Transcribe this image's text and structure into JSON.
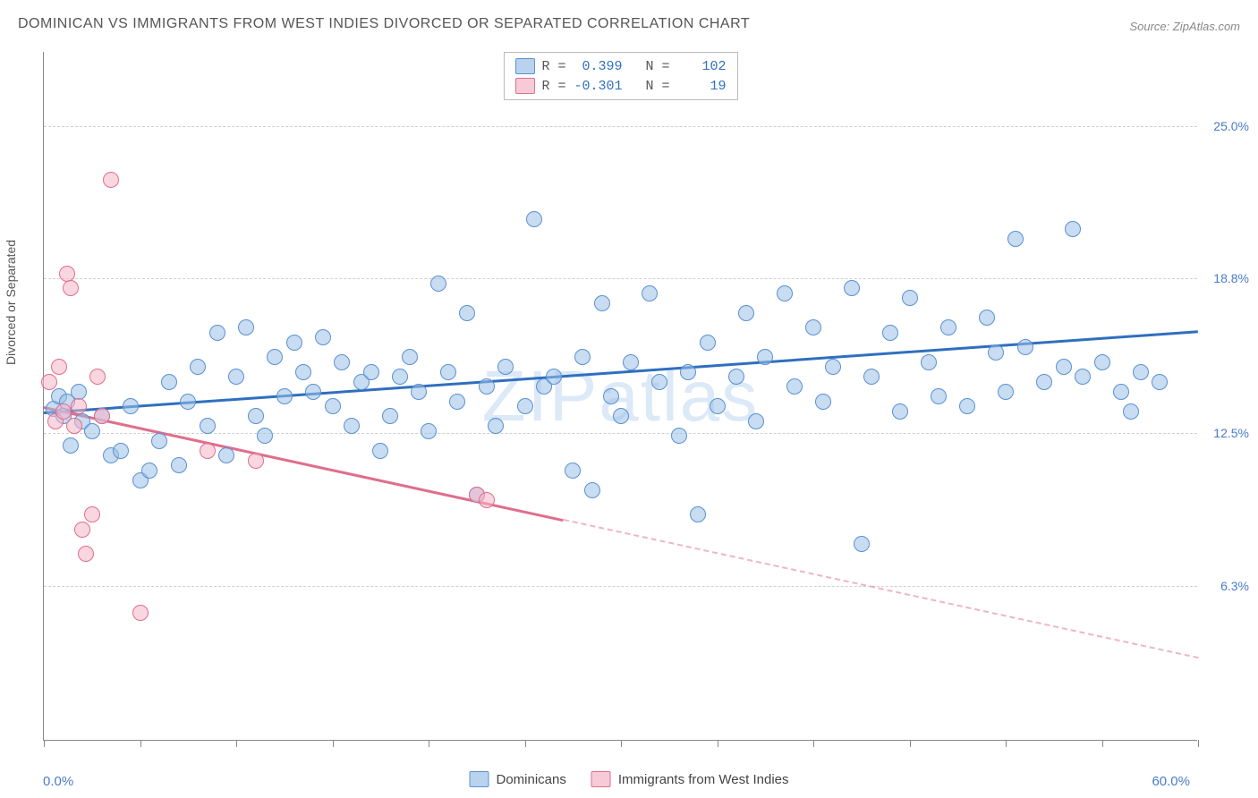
{
  "title": "DOMINICAN VS IMMIGRANTS FROM WEST INDIES DIVORCED OR SEPARATED CORRELATION CHART",
  "source": "Source: ZipAtlas.com",
  "watermark": "ZIPatlas",
  "ylabel": "Divorced or Separated",
  "chart": {
    "type": "scatter",
    "background_color": "#ffffff",
    "grid_color": "#d0d0d0",
    "xlim": [
      0,
      60
    ],
    "ylim": [
      0,
      28
    ],
    "x_axis_labels": {
      "left": "0.0%",
      "right": "60.0%"
    },
    "x_ticks": [
      0,
      5,
      10,
      15,
      20,
      25,
      30,
      35,
      40,
      45,
      50,
      55,
      60
    ],
    "y_gridlines": [
      {
        "value": 6.3,
        "label": "6.3%"
      },
      {
        "value": 12.5,
        "label": "12.5%"
      },
      {
        "value": 18.8,
        "label": "18.8%"
      },
      {
        "value": 25.0,
        "label": "25.0%"
      }
    ],
    "marker_size": 18,
    "series": [
      {
        "name": "Dominicans",
        "color_fill": "rgba(155,192,232,0.55)",
        "color_stroke": "#5a91d1",
        "trend_color": "#2f6fc0",
        "trend": {
          "x1": 0,
          "y1": 13.4,
          "x2": 60,
          "y2": 16.7,
          "solid_until": 60
        },
        "R": "0.399",
        "N": "102",
        "points": [
          [
            0.5,
            13.5
          ],
          [
            0.8,
            14.0
          ],
          [
            1.0,
            13.2
          ],
          [
            1.2,
            13.8
          ],
          [
            1.4,
            12.0
          ],
          [
            1.8,
            14.2
          ],
          [
            2.0,
            13.0
          ],
          [
            2.5,
            12.6
          ],
          [
            3.0,
            13.2
          ],
          [
            3.5,
            11.6
          ],
          [
            4.0,
            11.8
          ],
          [
            4.5,
            13.6
          ],
          [
            5.0,
            10.6
          ],
          [
            5.5,
            11.0
          ],
          [
            6.0,
            12.2
          ],
          [
            6.5,
            14.6
          ],
          [
            7.0,
            11.2
          ],
          [
            7.5,
            13.8
          ],
          [
            8.0,
            15.2
          ],
          [
            8.5,
            12.8
          ],
          [
            9.0,
            16.6
          ],
          [
            9.5,
            11.6
          ],
          [
            10.0,
            14.8
          ],
          [
            10.5,
            16.8
          ],
          [
            11.0,
            13.2
          ],
          [
            11.5,
            12.4
          ],
          [
            12.0,
            15.6
          ],
          [
            12.5,
            14.0
          ],
          [
            13.0,
            16.2
          ],
          [
            13.5,
            15.0
          ],
          [
            14.0,
            14.2
          ],
          [
            14.5,
            16.4
          ],
          [
            15.0,
            13.6
          ],
          [
            15.5,
            15.4
          ],
          [
            16.0,
            12.8
          ],
          [
            16.5,
            14.6
          ],
          [
            17.0,
            15.0
          ],
          [
            17.5,
            11.8
          ],
          [
            18.0,
            13.2
          ],
          [
            18.5,
            14.8
          ],
          [
            19.0,
            15.6
          ],
          [
            19.5,
            14.2
          ],
          [
            20.0,
            12.6
          ],
          [
            20.5,
            18.6
          ],
          [
            21.0,
            15.0
          ],
          [
            21.5,
            13.8
          ],
          [
            22.0,
            17.4
          ],
          [
            22.5,
            10.0
          ],
          [
            23.0,
            14.4
          ],
          [
            23.5,
            12.8
          ],
          [
            24.0,
            15.2
          ],
          [
            25.0,
            13.6
          ],
          [
            25.5,
            21.2
          ],
          [
            26.0,
            14.4
          ],
          [
            26.5,
            14.8
          ],
          [
            27.5,
            11.0
          ],
          [
            28.0,
            15.6
          ],
          [
            28.5,
            10.2
          ],
          [
            29.0,
            17.8
          ],
          [
            29.5,
            14.0
          ],
          [
            30.0,
            13.2
          ],
          [
            30.5,
            15.4
          ],
          [
            31.5,
            18.2
          ],
          [
            32.0,
            14.6
          ],
          [
            33.0,
            12.4
          ],
          [
            33.5,
            15.0
          ],
          [
            34.0,
            9.2
          ],
          [
            34.5,
            16.2
          ],
          [
            35.0,
            13.6
          ],
          [
            36.0,
            14.8
          ],
          [
            36.5,
            17.4
          ],
          [
            37.0,
            13.0
          ],
          [
            37.5,
            15.6
          ],
          [
            38.5,
            18.2
          ],
          [
            39.0,
            14.4
          ],
          [
            40.0,
            16.8
          ],
          [
            40.5,
            13.8
          ],
          [
            41.0,
            15.2
          ],
          [
            42.0,
            18.4
          ],
          [
            42.5,
            8.0
          ],
          [
            43.0,
            14.8
          ],
          [
            44.0,
            16.6
          ],
          [
            44.5,
            13.4
          ],
          [
            45.0,
            18.0
          ],
          [
            46.0,
            15.4
          ],
          [
            46.5,
            14.0
          ],
          [
            47.0,
            16.8
          ],
          [
            48.0,
            13.6
          ],
          [
            49.0,
            17.2
          ],
          [
            49.5,
            15.8
          ],
          [
            50.0,
            14.2
          ],
          [
            50.5,
            20.4
          ],
          [
            51.0,
            16.0
          ],
          [
            52.0,
            14.6
          ],
          [
            53.0,
            15.2
          ],
          [
            53.5,
            20.8
          ],
          [
            54.0,
            14.8
          ],
          [
            55.0,
            15.4
          ],
          [
            56.0,
            14.2
          ],
          [
            56.5,
            13.4
          ],
          [
            57.0,
            15.0
          ],
          [
            58.0,
            14.6
          ]
        ]
      },
      {
        "name": "Immigrants from West Indies",
        "color_fill": "rgba(245,180,200,0.55)",
        "color_stroke": "#e06e8c",
        "trend_color": "#e06e8c",
        "trend": {
          "x1": 0,
          "y1": 13.6,
          "x2": 60,
          "y2": 3.4,
          "solid_until": 27
        },
        "R": "-0.301",
        "N": "19",
        "points": [
          [
            0.3,
            14.6
          ],
          [
            0.6,
            13.0
          ],
          [
            0.8,
            15.2
          ],
          [
            1.0,
            13.4
          ],
          [
            1.2,
            19.0
          ],
          [
            1.4,
            18.4
          ],
          [
            1.6,
            12.8
          ],
          [
            1.8,
            13.6
          ],
          [
            2.0,
            8.6
          ],
          [
            2.2,
            7.6
          ],
          [
            2.5,
            9.2
          ],
          [
            2.8,
            14.8
          ],
          [
            3.0,
            13.2
          ],
          [
            3.5,
            22.8
          ],
          [
            5.0,
            5.2
          ],
          [
            8.5,
            11.8
          ],
          [
            11.0,
            11.4
          ],
          [
            22.5,
            10.0
          ],
          [
            23.0,
            9.8
          ]
        ]
      }
    ]
  },
  "legend": {
    "items": [
      {
        "label": "Dominicans",
        "swatch": "blue"
      },
      {
        "label": "Immigrants from West Indies",
        "swatch": "pink"
      }
    ]
  }
}
